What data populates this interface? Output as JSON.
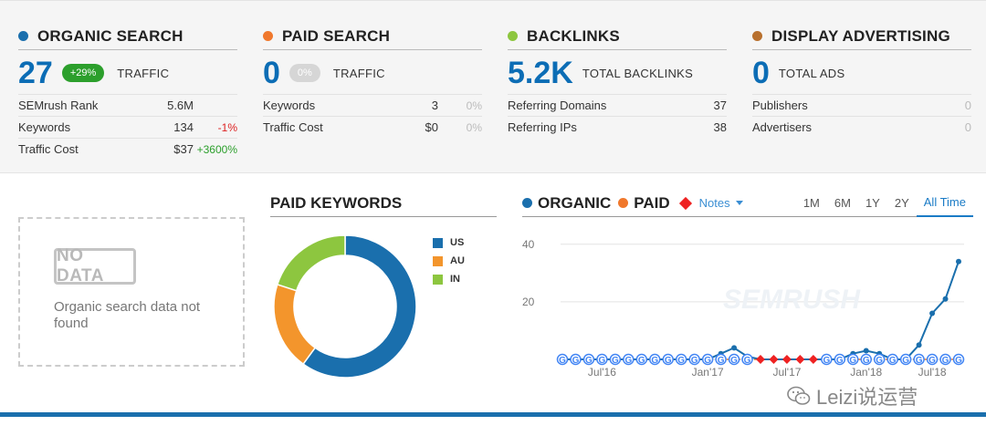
{
  "panels": {
    "organic": {
      "title": "ORGANIC SEARCH",
      "color": "#1a6fad",
      "number": "27",
      "pill": "+29%",
      "label": "TRAFFIC",
      "rows": [
        {
          "label": "SEMrush Rank",
          "value": "5.6M",
          "delta": ""
        },
        {
          "label": "Keywords",
          "value": "134",
          "delta": "-1%"
        },
        {
          "label": "Traffic Cost",
          "value": "$37",
          "delta": "+3600%"
        }
      ]
    },
    "paid": {
      "title": "PAID SEARCH",
      "color": "#f0782c",
      "number": "0",
      "pill": "0%",
      "label": "TRAFFIC",
      "rows": [
        {
          "label": "Keywords",
          "value": "3",
          "delta": "0%"
        },
        {
          "label": "Traffic Cost",
          "value": "$0",
          "delta": "0%"
        }
      ]
    },
    "backlinks": {
      "title": "BACKLINKS",
      "color": "#8dc63f",
      "number": "5.2K",
      "label": "TOTAL BACKLINKS",
      "rows": [
        {
          "label": "Referring Domains",
          "value": "37"
        },
        {
          "label": "Referring IPs",
          "value": "38"
        }
      ]
    },
    "display": {
      "title": "DISPLAY ADVERTISING",
      "color": "#b8702e",
      "number": "0",
      "label": "TOTAL ADS",
      "rows": [
        {
          "label": "Publishers",
          "value": "0"
        },
        {
          "label": "Advertisers",
          "value": "0"
        }
      ]
    }
  },
  "nodata": {
    "stamp": "NO DATA",
    "text": "Organic search data not found"
  },
  "paid_keywords": {
    "title": "PAID KEYWORDS",
    "legend": [
      {
        "label": "US",
        "color": "#1a6fad",
        "value": 0.6
      },
      {
        "label": "AU",
        "color": "#f3952c",
        "value": 0.2
      },
      {
        "label": "IN",
        "color": "#8dc63f",
        "value": 0.2
      }
    ]
  },
  "chart": {
    "legend": {
      "organic": "ORGANIC",
      "paid": "PAID",
      "notes": "Notes"
    },
    "colors": {
      "organic": "#1a6fad",
      "paid": "#f0782c",
      "notes": "#e22"
    },
    "ranges": [
      "1M",
      "6M",
      "1Y",
      "2Y",
      "All Time"
    ],
    "active_range": "All Time",
    "y_ticks": [
      "40",
      "20"
    ],
    "x_ticks": [
      "Jul'16",
      "Jan'17",
      "Jul'17",
      "Jan'18",
      "Jul'18"
    ]
  },
  "chart_data": {
    "type": "line",
    "y_ticks": [
      40,
      20
    ],
    "ylim": [
      0,
      45
    ],
    "x_ticks": [
      "Jul'16",
      "Jan'17",
      "Jul'17",
      "Jan'18",
      "Jul'18"
    ],
    "series": [
      {
        "name": "ORGANIC",
        "values": [
          0,
          0,
          0,
          0,
          0,
          0,
          0,
          0,
          0,
          0,
          0,
          0,
          2,
          4,
          1,
          0,
          0,
          0,
          0,
          0,
          0,
          0,
          2,
          3,
          2,
          0,
          0,
          5,
          16,
          21,
          34
        ]
      },
      {
        "name": "PAID",
        "values": [
          0,
          0,
          0,
          0,
          0,
          0,
          0,
          0,
          0,
          0,
          0,
          0,
          0,
          0,
          0,
          0,
          0,
          0,
          0,
          0,
          0,
          0,
          0,
          0,
          0,
          0,
          0,
          0,
          0,
          0,
          0
        ]
      }
    ]
  },
  "watermark": {
    "text": "Leizi说运营"
  }
}
